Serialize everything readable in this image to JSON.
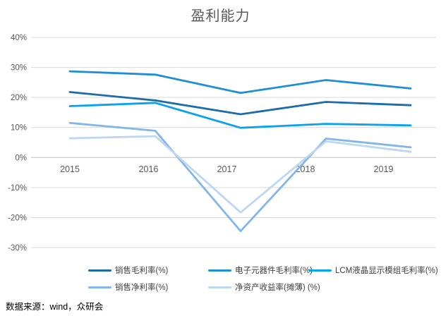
{
  "title": "盈利能力",
  "source_note": "数据来源：wind，众研会",
  "colors": {
    "title_text": "#595959",
    "axis_text": "#595959",
    "gridline": "#d9d9d9",
    "zero_axis": "#bfbfbf",
    "background": "#ffffff"
  },
  "chart_data": {
    "type": "line",
    "title": "盈利能力",
    "categories": [
      "2015",
      "2016",
      "2017",
      "2018",
      "2019"
    ],
    "series": [
      {
        "name": "销售毛利率(%)",
        "color": "#1b6ca8",
        "values": [
          21.8,
          19.0,
          14.4,
          18.5,
          17.4
        ]
      },
      {
        "name": "电子元器件毛利率(%)",
        "color": "#1e8fd5",
        "values": [
          28.7,
          27.6,
          21.5,
          25.8,
          23.0
        ]
      },
      {
        "name": "LCM液晶显示模组毛利率(%)",
        "color": "#0aa1f0",
        "values": [
          17.1,
          18.2,
          9.9,
          11.2,
          10.7
        ]
      },
      {
        "name": "销售净利率(%)",
        "color": "#82b6ea",
        "values": [
          11.5,
          8.9,
          -24.5,
          6.3,
          3.4
        ]
      },
      {
        "name": "净资产收益率(摊薄) (%)",
        "color": "#bdd6f2",
        "values": [
          6.4,
          7.1,
          -18.3,
          5.4,
          1.9
        ]
      }
    ],
    "ylim": [
      -30,
      40
    ],
    "ytick_step": 10,
    "ytick_suffix": "%",
    "grid": true,
    "legend_position": "bottom"
  }
}
